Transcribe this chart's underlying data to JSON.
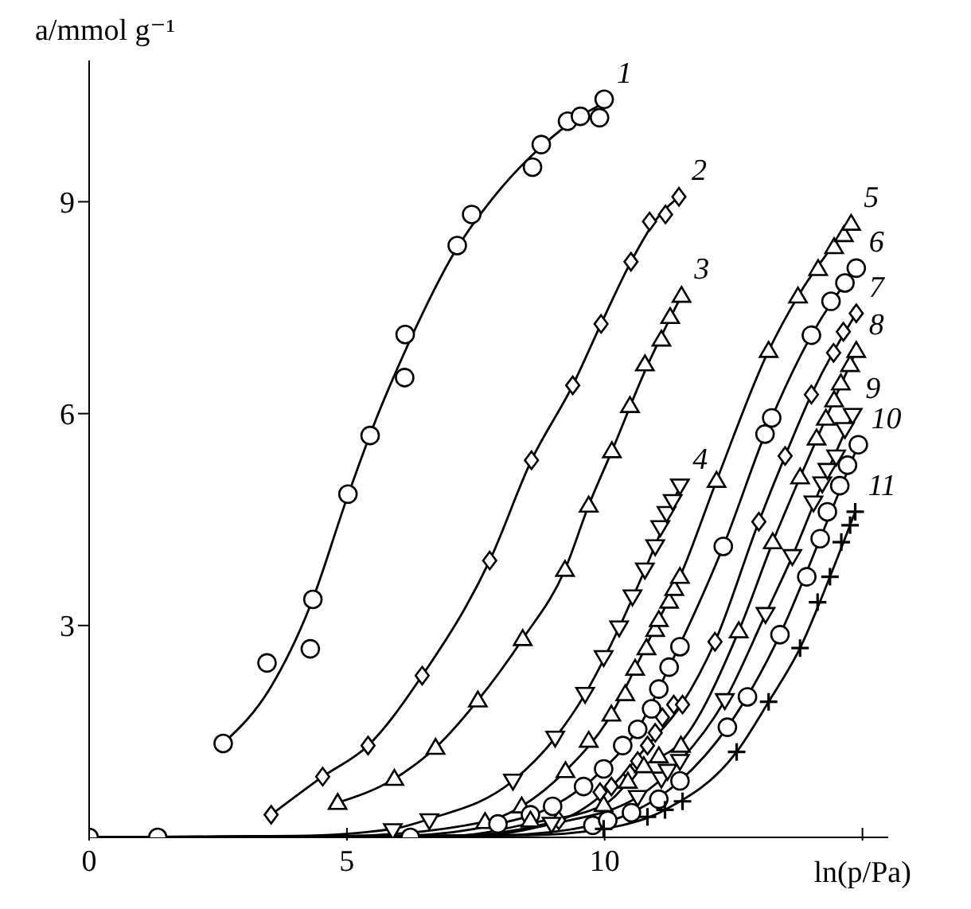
{
  "chart_data": {
    "type": "scatter",
    "xlabel": "ln(p/Pa)",
    "ylabel": "a/mmol g⁻¹",
    "xlim": [
      0,
      15.5
    ],
    "ylim": [
      0,
      11
    ],
    "xticks": [
      0,
      5,
      10,
      {
        "value": 15,
        "label": null
      }
    ],
    "yticks": [
      3,
      6,
      9
    ],
    "series": [
      {
        "name": "1",
        "marker": "circle",
        "color": "#000000",
        "x": [
          2.6,
          3.45,
          4.29,
          4.34,
          5.02,
          5.45,
          6.12,
          6.13,
          7.14,
          7.42,
          8.6,
          8.77,
          9.28,
          9.53,
          9.9,
          9.99
        ],
        "values": [
          1.33,
          2.47,
          2.67,
          3.37,
          4.86,
          5.69,
          6.51,
          7.12,
          8.38,
          8.82,
          9.49,
          9.81,
          10.14,
          10.21,
          10.19,
          10.45
        ]
      },
      {
        "name": "2",
        "marker": "diamond",
        "color": "#000000",
        "x": [
          3.53,
          4.53,
          5.41,
          6.46,
          7.77,
          8.58,
          9.38,
          9.93,
          10.51,
          10.87,
          11.18,
          11.44
        ],
        "values": [
          0.32,
          0.86,
          1.3,
          2.29,
          3.92,
          5.34,
          6.4,
          7.27,
          8.15,
          8.72,
          8.82,
          9.07
        ]
      },
      {
        "name": "3",
        "marker": "triangle",
        "color": "#000000",
        "x": [
          4.82,
          5.92,
          6.72,
          7.54,
          8.41,
          9.23,
          9.69,
          10.14,
          10.49,
          10.78,
          11.1,
          11.27,
          11.49
        ],
        "values": [
          0.49,
          0.83,
          1.27,
          1.94,
          2.81,
          3.79,
          4.7,
          5.47,
          6.11,
          6.7,
          7.05,
          7.37,
          7.67
        ]
      },
      {
        "name": "4",
        "marker": "triangle-down",
        "color": "#000000",
        "x": [
          5.89,
          6.6,
          8.22,
          9.04,
          9.62,
          9.98,
          10.28,
          10.54,
          10.78,
          10.98,
          11.08,
          11.2,
          11.32,
          11.46
        ],
        "values": [
          0.1,
          0.24,
          0.8,
          1.41,
          2.03,
          2.55,
          2.97,
          3.41,
          3.79,
          4.12,
          4.39,
          4.59,
          4.76,
          4.98
        ]
      },
      {
        "name": "5",
        "marker": "triangle",
        "color": "#000000",
        "x": [
          7.68,
          8.39,
          9.24,
          9.69,
          10.13,
          10.4,
          10.59,
          10.81,
          10.98,
          11.05,
          11.25,
          11.35,
          11.46,
          12.17,
          13.18,
          13.75,
          14.14,
          14.45,
          14.64,
          14.78
        ],
        "values": [
          0.22,
          0.44,
          0.94,
          1.37,
          1.74,
          2.03,
          2.39,
          2.68,
          2.94,
          3.08,
          3.34,
          3.52,
          3.69,
          5.05,
          6.89,
          7.66,
          8.05,
          8.36,
          8.53,
          8.69
        ]
      },
      {
        "name": "6",
        "marker": "circle",
        "color": "#000000",
        "x": [
          0,
          1.33,
          6.23,
          7.93,
          8.56,
          8.99,
          9.59,
          9.98,
          10.35,
          10.64,
          10.91,
          11.05,
          11.25,
          11.46,
          12.3,
          13.11,
          13.24,
          14.01,
          14.39,
          14.66,
          14.88
        ],
        "values": [
          0,
          0,
          0,
          0.19,
          0.32,
          0.44,
          0.72,
          0.97,
          1.3,
          1.53,
          1.82,
          2.1,
          2.41,
          2.7,
          4.12,
          5.71,
          5.94,
          7.11,
          7.59,
          7.85,
          8.06
        ]
      },
      {
        "name": "7",
        "marker": "diamond",
        "color": "#000000",
        "x": [
          9.11,
          9.91,
          10.13,
          10.49,
          10.64,
          10.83,
          10.98,
          11.12,
          11.34,
          11.51,
          12.14,
          12.99,
          13.5,
          14.01,
          14.44,
          14.63,
          14.88
        ],
        "values": [
          0.24,
          0.64,
          0.72,
          0.9,
          1.08,
          1.3,
          1.48,
          1.7,
          1.88,
          1.88,
          2.77,
          4.47,
          5.4,
          6.27,
          6.86,
          7.16,
          7.42
        ]
      },
      {
        "name": "8",
        "marker": "triangle",
        "color": "#000000",
        "x": [
          8.56,
          9.98,
          10.45,
          10.76,
          11.05,
          11.48,
          12.6,
          13.26,
          13.79,
          14.11,
          14.29,
          14.45,
          14.58,
          14.76,
          14.88
        ],
        "values": [
          0.24,
          0.46,
          0.79,
          1.01,
          1.15,
          1.3,
          2.92,
          4.18,
          5.1,
          5.65,
          5.93,
          6.19,
          6.43,
          6.69,
          6.89
        ]
      },
      {
        "name": "9",
        "marker": "triangle-down",
        "color": "#000000",
        "x": [
          8.97,
          10.64,
          11.1,
          11.22,
          11.46,
          12.33,
          13.12,
          13.64,
          14.05,
          14.22,
          14.32,
          14.49,
          14.66,
          14.81
        ],
        "values": [
          0.19,
          0.57,
          0.83,
          0.94,
          1.08,
          1.94,
          3.16,
          3.98,
          4.74,
          5.01,
          5.2,
          5.39,
          5.78,
          5.98
        ]
      },
      {
        "name": "10",
        "marker": "circle",
        "color": "#000000",
        "x": [
          9.77,
          10.06,
          10.52,
          11.05,
          11.46,
          12.38,
          12.77,
          13.4,
          13.92,
          14.18,
          14.32,
          14.56,
          14.71,
          14.92
        ],
        "values": [
          0.17,
          0.24,
          0.35,
          0.54,
          0.8,
          1.56,
          1.99,
          2.87,
          3.69,
          4.23,
          4.61,
          4.98,
          5.27,
          5.56
        ]
      },
      {
        "name": "11",
        "marker": "cross",
        "color": "#000000",
        "x": [
          9.98,
          10.83,
          11.17,
          11.51,
          12.56,
          13.18,
          13.79,
          14.13,
          14.37,
          14.59,
          14.76,
          14.86
        ],
        "values": [
          0.12,
          0.29,
          0.39,
          0.51,
          1.21,
          1.92,
          2.68,
          3.33,
          3.69,
          4.18,
          4.42,
          4.61
        ]
      },
      {
        "type": "line",
        "marker": "none",
        "color": "#000000",
        "x": [
          2.6,
          3.5,
          4.3,
          5,
          5.5,
          6.2,
          7.1,
          8,
          8.8,
          9.5,
          10
        ],
        "values": [
          1.33,
          2.1,
          3.3,
          4.8,
          5.8,
          7.0,
          8.3,
          9.2,
          9.8,
          10.2,
          10.4
        ]
      },
      {
        "type": "line",
        "marker": "none",
        "color": "#000000",
        "x": [
          3.53,
          4.53,
          5.41,
          6.46,
          7.77,
          8.58,
          9.38,
          9.93,
          10.51,
          11.0,
          11.44
        ],
        "values": [
          0.32,
          0.86,
          1.3,
          2.29,
          3.92,
          5.34,
          6.4,
          7.27,
          8.15,
          8.75,
          9.07
        ]
      },
      {
        "type": "line",
        "marker": "none",
        "color": "#000000",
        "x": [
          4.82,
          5.92,
          6.72,
          7.54,
          8.41,
          9.23,
          9.69,
          10.14,
          10.78,
          11.49
        ],
        "values": [
          0.49,
          0.83,
          1.27,
          1.94,
          2.81,
          3.79,
          4.7,
          5.47,
          6.6,
          7.67
        ]
      },
      {
        "type": "line",
        "marker": "none",
        "color": "#000000",
        "x": [
          0,
          4,
          5.89,
          6.6,
          8.22,
          9.04,
          9.62,
          10.28,
          10.78,
          11.46
        ],
        "values": [
          0,
          0.02,
          0.12,
          0.26,
          0.8,
          1.41,
          2.03,
          2.97,
          3.79,
          4.98
        ]
      },
      {
        "type": "line",
        "marker": "none",
        "color": "#000000",
        "x": [
          0,
          5,
          7.68,
          8.39,
          9.24,
          10.13,
          10.59,
          11.05,
          11.46,
          12.17,
          13.18,
          13.75,
          14.78
        ],
        "values": [
          0,
          0.02,
          0.22,
          0.44,
          0.94,
          1.74,
          2.39,
          3.08,
          3.69,
          5.05,
          6.89,
          7.66,
          8.69
        ]
      },
      {
        "type": "line",
        "marker": "none",
        "color": "#000000",
        "x": [
          0,
          6,
          7.93,
          8.99,
          9.98,
          10.64,
          11.25,
          12.3,
          13.17,
          14.01,
          14.88
        ],
        "values": [
          0,
          0.02,
          0.19,
          0.44,
          0.97,
          1.53,
          2.41,
          4.12,
          5.82,
          7.11,
          8.06
        ]
      },
      {
        "type": "line",
        "marker": "none",
        "color": "#000000",
        "x": [
          0,
          7,
          9.11,
          10.13,
          10.83,
          11.49,
          12.14,
          12.99,
          13.5,
          14.01,
          14.88
        ],
        "values": [
          0,
          0.02,
          0.24,
          0.72,
          1.3,
          1.88,
          2.77,
          4.47,
          5.4,
          6.27,
          7.42
        ]
      },
      {
        "type": "line",
        "marker": "none",
        "color": "#000000",
        "x": [
          0,
          7,
          8.56,
          9.98,
          10.76,
          11.48,
          12.6,
          13.26,
          13.79,
          14.29,
          14.88
        ],
        "values": [
          0,
          0.02,
          0.2,
          0.46,
          1.01,
          1.35,
          2.92,
          4.18,
          5.1,
          5.93,
          6.89
        ]
      },
      {
        "type": "line",
        "marker": "none",
        "color": "#000000",
        "x": [
          0,
          7.5,
          8.97,
          10.64,
          11.46,
          12.33,
          13.12,
          13.64,
          14.22,
          14.81
        ],
        "values": [
          0,
          0.02,
          0.19,
          0.57,
          1.08,
          1.94,
          3.16,
          3.98,
          5.01,
          5.98
        ]
      },
      {
        "type": "line",
        "marker": "none",
        "color": "#000000",
        "x": [
          0,
          8,
          9.77,
          10.52,
          11.46,
          12.38,
          13.4,
          14.18,
          14.92
        ],
        "values": [
          0,
          0.03,
          0.17,
          0.35,
          0.8,
          1.56,
          2.87,
          4.23,
          5.56
        ]
      },
      {
        "type": "line",
        "marker": "none",
        "color": "#000000",
        "x": [
          0,
          8.5,
          9.98,
          11.17,
          12.56,
          13.18,
          13.79,
          14.37,
          14.86
        ],
        "values": [
          0,
          0.03,
          0.12,
          0.39,
          1.21,
          1.92,
          2.68,
          3.69,
          4.61
        ]
      }
    ]
  }
}
